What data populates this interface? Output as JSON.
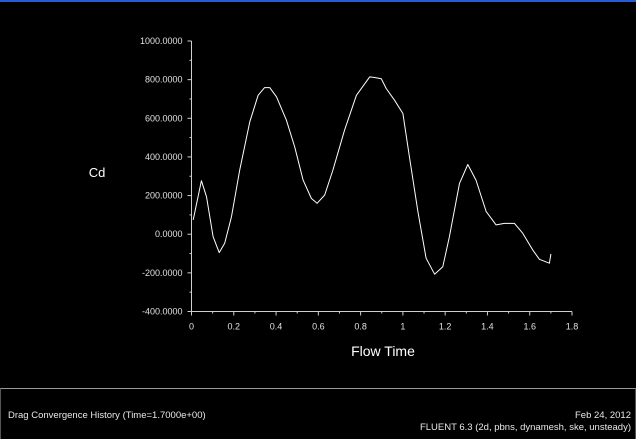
{
  "colors": {
    "background": "#000000",
    "line": "#ffffff",
    "title_bar": "#2a5bd7"
  },
  "footer": {
    "plot_title": "Drag Convergence History  (Time=1.7000e+00)",
    "date": "Feb 24, 2012",
    "solver_info": "FLUENT 6.3 (2d, pbns, dynamesh, ske, unsteady)"
  },
  "chart_data": {
    "type": "line",
    "title": "",
    "xlabel": "Flow Time",
    "ylabel": "Cd",
    "xlim": [
      0,
      1.8
    ],
    "ylim": [
      -400,
      1000
    ],
    "grid": false,
    "x_ticks": [
      "0",
      "0.2",
      "0.4",
      "0.6",
      "0.8",
      "1",
      "1.2",
      "1.4",
      "1.6",
      "1.8"
    ],
    "y_ticks": [
      "1000.0000",
      "800.0000",
      "600.0000",
      "400.0000",
      "200.0000",
      "0.0000",
      "-200.0000",
      "-400.0000"
    ],
    "series": [
      {
        "x": [
          0.008,
          0.047,
          0.071,
          0.102,
          0.131,
          0.157,
          0.189,
          0.228,
          0.276,
          0.315,
          0.346,
          0.37,
          0.402,
          0.449,
          0.488,
          0.528,
          0.567,
          0.594,
          0.63,
          0.669,
          0.724,
          0.78,
          0.843,
          0.866,
          0.898,
          0.921,
          0.961,
          1.0,
          1.031,
          1.071,
          1.11,
          1.15,
          1.189,
          1.22,
          1.268,
          1.307,
          1.346,
          1.394,
          1.441,
          1.48,
          1.528,
          1.567,
          1.614,
          1.646,
          1.693,
          1.7
        ],
        "y": [
          74,
          277,
          194,
          -13,
          -95,
          -47,
          91,
          332,
          582,
          719,
          759,
          759,
          711,
          590,
          452,
          280,
          185,
          160,
          203,
          332,
          538,
          719,
          814,
          811,
          805,
          754,
          693,
          625,
          401,
          117,
          -124,
          -207,
          -168,
          -13,
          263,
          361,
          280,
          117,
          48,
          56,
          56,
          5,
          -81,
          -130,
          -150,
          -102
        ]
      }
    ]
  }
}
